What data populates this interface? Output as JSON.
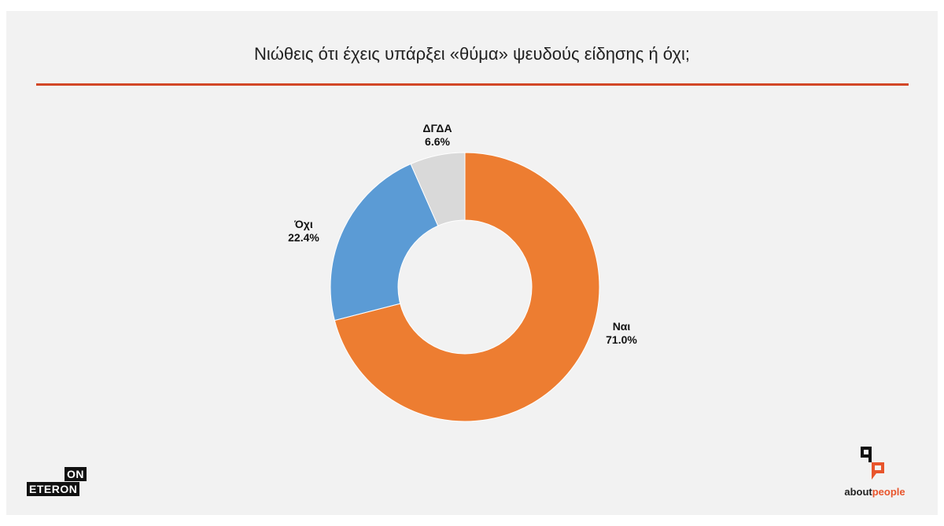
{
  "title": "Νιώθεις ότι έχεις υπάρξει «θύμα» ψευδούς είδησης ή όχι;",
  "accent_color": "#d24726",
  "chart_data": {
    "type": "pie",
    "variant": "donut",
    "title": "Νιώθεις ότι έχεις υπάρξει «θύμα» ψευδούς είδησης ή όχι;",
    "categories": [
      "Ναι",
      "Όχι",
      "ΔΓΔΑ"
    ],
    "values": [
      71.0,
      22.4,
      6.6
    ],
    "value_labels": [
      "71.0%",
      "22.4%",
      "6.6%"
    ],
    "colors": [
      "#ed7d31",
      "#5b9bd5",
      "#d9d9d9"
    ],
    "start_angle_deg": 0,
    "direction": "clockwise",
    "legend": "none",
    "unit": "%"
  },
  "logos": {
    "left": {
      "line1": "ON",
      "line2": "ETERON"
    },
    "right": {
      "part1": "about",
      "part2": "people",
      "accent": "#e8552c"
    }
  }
}
